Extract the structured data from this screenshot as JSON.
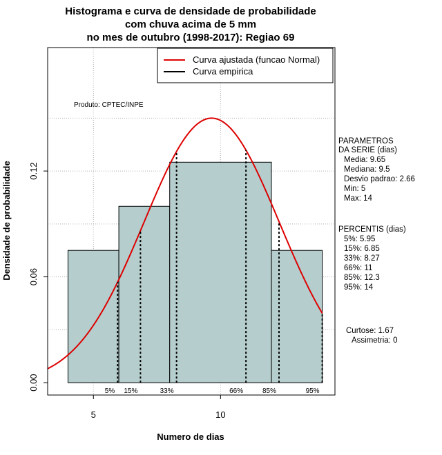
{
  "chart_data": {
    "type": "histogram",
    "title": [
      "Histograma e curva de densidade de probabilidade",
      "com chuva acima de 5 mm",
      "no mes de outubro (1998-2017): Regiao 69"
    ],
    "xlabel": "Numero de dias",
    "ylabel": "Densidade de probabilidade",
    "xlim": [
      3.2,
      14.5
    ],
    "ylim": [
      -0.007,
      0.19
    ],
    "x_ticks": [
      5,
      10
    ],
    "y_ticks": [
      0.0,
      0.06,
      0.12
    ],
    "y_tick_labels": [
      "0.00",
      "0.06",
      "0.12"
    ],
    "grid": true,
    "bars": [
      {
        "x0": 4,
        "x1": 6,
        "density": 0.075
      },
      {
        "x0": 6,
        "x1": 8,
        "density": 0.1
      },
      {
        "x0": 8,
        "x1": 12,
        "density": 0.125
      },
      {
        "x0": 12,
        "x1": 14,
        "density": 0.075
      }
    ],
    "bar_color": "#b5cdcd",
    "normal_curve": {
      "name": "Curva ajustada (funcao Normal)",
      "mean": 9.65,
      "sd": 2.66,
      "color": "#dd0000"
    },
    "empirical_curve": {
      "name": "Curva empirica",
      "color": "#000000"
    },
    "percentiles": [
      {
        "label": "5%",
        "x": 5.95
      },
      {
        "label": "15%",
        "x": 6.85
      },
      {
        "label": "33%",
        "x": 8.27
      },
      {
        "label": "66%",
        "x": 11
      },
      {
        "label": "85%",
        "x": 12.3
      },
      {
        "label": "95%",
        "x": 14
      }
    ],
    "legend_position": "top-right",
    "product_label": "Produto: CPTEC/INPE"
  },
  "side_panel": {
    "params_title": [
      "PARAMETROS",
      "DA SERIE (dias)"
    ],
    "params": [
      "Media: 9.65",
      "Mediana: 9.5",
      "Desvio padrao: 2.66",
      "Min: 5",
      "Max: 14"
    ],
    "percentis_title": "PERCENTIS (dias)",
    "percentis": [
      "5%: 5.95",
      "15%: 6.85",
      "33%: 8.27",
      "66%: 11",
      "85%: 12.3",
      "95%: 14"
    ],
    "curtose": "Curtose: 1.67",
    "assimetria": "Assimetria: 0"
  }
}
